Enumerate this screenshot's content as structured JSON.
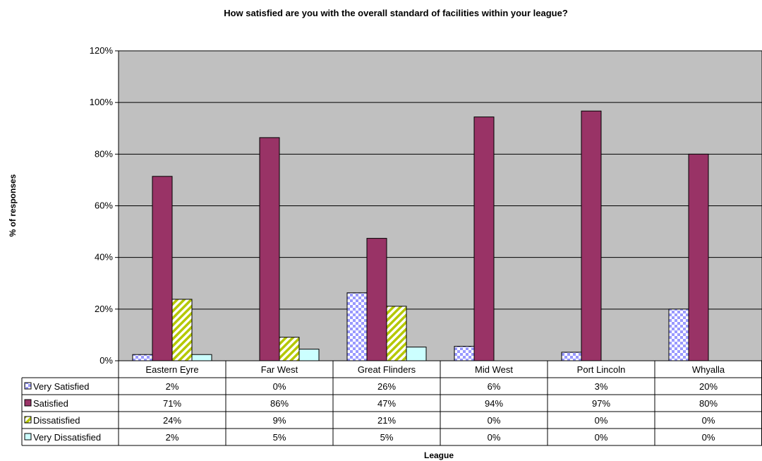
{
  "chart_data": {
    "type": "bar",
    "title": "How satisfied are you with the overall standard of facilities within your league?",
    "xlabel": "League",
    "ylabel": "% of responses",
    "ylim": [
      0,
      120
    ],
    "yticks": [
      0,
      20,
      40,
      60,
      80,
      100,
      120
    ],
    "ytick_labels": [
      "0%",
      "20%",
      "40%",
      "60%",
      "80%",
      "100%",
      "120%"
    ],
    "grid": true,
    "legend": "data-table",
    "categories": [
      "Eastern Eyre",
      "Far West",
      "Great Flinders",
      "Mid West",
      "Port Lincoln",
      "Whyalla"
    ],
    "series": [
      {
        "name": "Very Satisfied",
        "color": "#9999ff",
        "pattern": "checker",
        "values": [
          2.4,
          0,
          26.3,
          5.6,
          3.3,
          20
        ],
        "labels": [
          "2%",
          "0%",
          "26%",
          "6%",
          "3%",
          "20%"
        ]
      },
      {
        "name": "Satisfied",
        "color": "#993366",
        "pattern": "solid",
        "values": [
          71.4,
          86.4,
          47.4,
          94.4,
          96.7,
          80
        ],
        "labels": [
          "71%",
          "86%",
          "47%",
          "94%",
          "97%",
          "80%"
        ]
      },
      {
        "name": "Dissatisfied",
        "color": "#ccdd33",
        "pattern": "diagonal",
        "values": [
          23.8,
          9.1,
          21.1,
          0,
          0,
          0
        ],
        "labels": [
          "24%",
          "9%",
          "21%",
          "0%",
          "0%",
          "0%"
        ]
      },
      {
        "name": "Very Dissatisfied",
        "color": "#ccffff",
        "pattern": "solid",
        "values": [
          2.4,
          4.5,
          5.3,
          0,
          0,
          0
        ],
        "labels": [
          "2%",
          "5%",
          "5%",
          "0%",
          "0%",
          "0%"
        ]
      }
    ],
    "plot_background": "#c0c0c0"
  }
}
